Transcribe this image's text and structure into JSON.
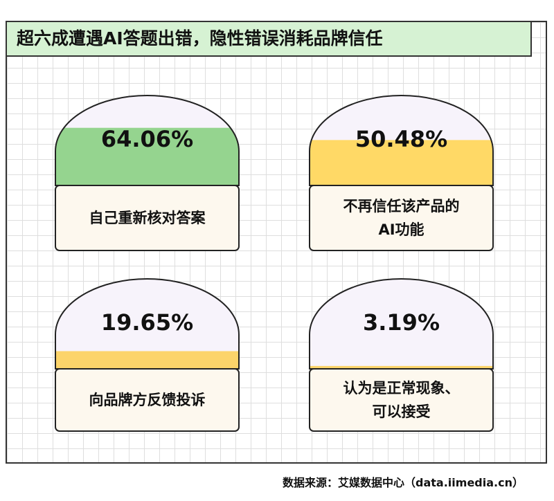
{
  "chart_data": {
    "type": "dome",
    "title": "超六成遭遇AI答题出错，隐性错误消耗品牌信任",
    "categories": [
      "自己重新核对答案",
      "不再信任该产品的\nAI功能",
      "向品牌方反馈投诉",
      "认为是正常现象、\n可以接受"
    ],
    "values": [
      64.06,
      50.48,
      19.65,
      3.19
    ],
    "value_labels": [
      "64.06%",
      "50.48%",
      "19.65%",
      "3.19%"
    ],
    "colors": [
      "#95d48f",
      "#ffd966",
      "#fcd46a",
      "#fcd46a"
    ],
    "source": "数据来源：艾媒数据中心（data.iimedia.cn）"
  }
}
